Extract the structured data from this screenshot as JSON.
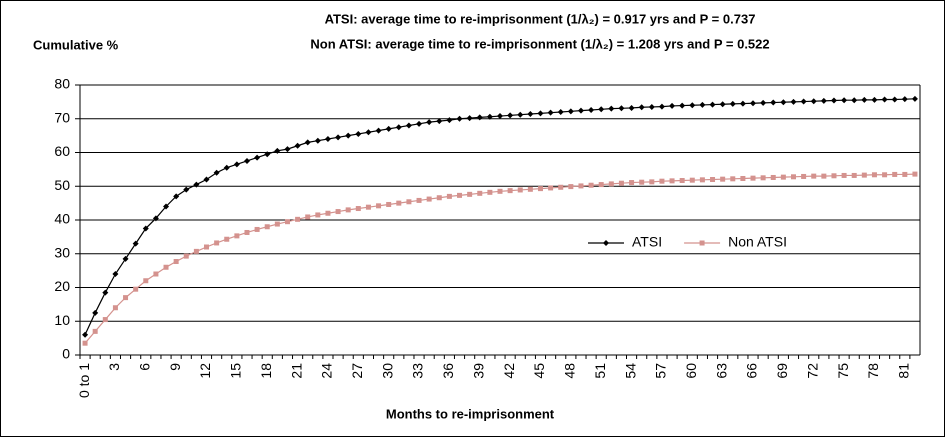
{
  "chart_data": {
    "type": "line",
    "title_lines": [
      "ATSI: average time to re-imprisonment (1/λ₂) =  0.917 yrs and P = 0.737",
      "Non ATSI: average time to re-imprisonment (1/λ₂) =  1.208 yrs and P = 0.522"
    ],
    "y_label": "Cumulative %",
    "x_label": "Months to re-imprisonment",
    "categories": [
      "0 to 1",
      null,
      null,
      "3",
      null,
      null,
      "6",
      null,
      null,
      "9",
      null,
      null,
      "12",
      null,
      null,
      "15",
      null,
      null,
      "18",
      null,
      null,
      "21",
      null,
      null,
      "24",
      null,
      null,
      "27",
      null,
      null,
      "30",
      null,
      null,
      "33",
      null,
      null,
      "36",
      null,
      null,
      "39",
      null,
      null,
      "42",
      null,
      null,
      "45",
      null,
      null,
      "48",
      null,
      null,
      "51",
      null,
      null,
      "54",
      null,
      null,
      "57",
      null,
      null,
      "60",
      null,
      null,
      "63",
      null,
      null,
      "66",
      null,
      null,
      "69",
      null,
      null,
      "72",
      null,
      null,
      "75",
      null,
      null,
      "78",
      null,
      null,
      "81",
      null
    ],
    "series": [
      {
        "name": "ATSI",
        "color": "#000000",
        "marker": "diamond",
        "values": [
          6,
          12.5,
          18.5,
          24,
          28.5,
          33,
          37.5,
          40.5,
          44,
          47,
          49,
          50.5,
          52,
          54,
          55.5,
          56.5,
          57.5,
          58.5,
          59.5,
          60.5,
          61,
          62,
          63,
          63.5,
          64,
          64.5,
          65,
          65.5,
          66,
          66.5,
          67,
          67.5,
          68,
          68.5,
          69,
          69.3,
          69.6,
          70,
          70.2,
          70.4,
          70.6,
          70.8,
          71,
          71.2,
          71.4,
          71.6,
          71.8,
          72,
          72.2,
          72.4,
          72.6,
          72.8,
          73,
          73.1,
          73.2,
          73.4,
          73.5,
          73.6,
          73.8,
          73.9,
          74,
          74.1,
          74.2,
          74.3,
          74.4,
          74.5,
          74.6,
          74.7,
          74.8,
          74.9,
          75,
          75.1,
          75.2,
          75.3,
          75.4,
          75.5,
          75.5,
          75.6,
          75.6,
          75.7,
          75.7,
          75.8,
          75.9
        ]
      },
      {
        "name": "Non ATSI",
        "color": "#d4928e",
        "marker": "square",
        "values": [
          3.5,
          7,
          10.5,
          14,
          17,
          19.5,
          22,
          24,
          26,
          27.7,
          29.3,
          30.7,
          32,
          33.2,
          34.3,
          35.3,
          36.3,
          37.2,
          38,
          38.8,
          39.5,
          40.2,
          40.9,
          41.5,
          42,
          42.5,
          43,
          43.4,
          43.8,
          44.2,
          44.6,
          45,
          45.4,
          45.8,
          46.2,
          46.6,
          47,
          47.3,
          47.6,
          47.9,
          48.2,
          48.5,
          48.7,
          48.9,
          49.1,
          49.3,
          49.5,
          49.7,
          49.9,
          50.1,
          50.3,
          50.5,
          50.7,
          50.9,
          51.1,
          51.2,
          51.3,
          51.5,
          51.6,
          51.7,
          51.8,
          51.9,
          52,
          52.1,
          52.2,
          52.3,
          52.4,
          52.5,
          52.6,
          52.7,
          52.8,
          52.9,
          53,
          53,
          53.1,
          53.2,
          53.2,
          53.3,
          53.4,
          53.4,
          53.5,
          53.5,
          53.6
        ]
      }
    ],
    "ylim": [
      0,
      80
    ],
    "yticks": [
      0,
      10,
      20,
      30,
      40,
      50,
      60,
      70,
      80
    ],
    "grid": true
  }
}
